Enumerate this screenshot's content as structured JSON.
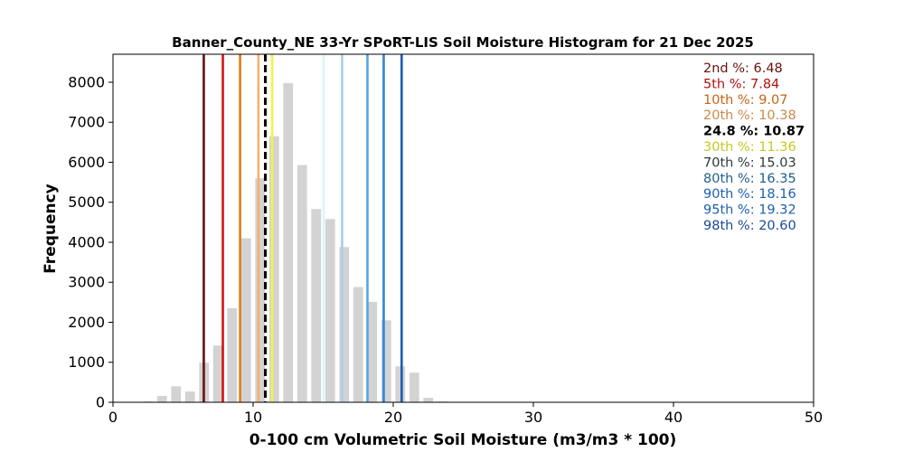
{
  "chart_data": {
    "type": "bar",
    "title": "Banner_County_NE 33-Yr SPoRT-LIS Soil Moisture Histogram for 21 Dec 2025",
    "xlabel": "0-100 cm Volumetric Soil Moisture (m3/m3 * 100)",
    "ylabel": "Frequency",
    "xlim": [
      0,
      50
    ],
    "ylim": [
      0,
      8700
    ],
    "xticks": [
      "0",
      "10",
      "20",
      "30",
      "40",
      "50"
    ],
    "yticks": [
      "0",
      "1000",
      "2000",
      "3000",
      "4000",
      "5000",
      "6000",
      "7000",
      "8000"
    ],
    "bar_color": "#d3d3d3",
    "bar_width": 0.7,
    "bins": [
      {
        "x": 2.5,
        "value": 20
      },
      {
        "x": 3.5,
        "value": 160
      },
      {
        "x": 4.5,
        "value": 400
      },
      {
        "x": 5.5,
        "value": 270
      },
      {
        "x": 6.5,
        "value": 990
      },
      {
        "x": 7.5,
        "value": 1420
      },
      {
        "x": 8.5,
        "value": 2350
      },
      {
        "x": 9.5,
        "value": 4100
      },
      {
        "x": 10.5,
        "value": 5600
      },
      {
        "x": 11.5,
        "value": 6650
      },
      {
        "x": 12.5,
        "value": 7980
      },
      {
        "x": 13.5,
        "value": 5930
      },
      {
        "x": 14.5,
        "value": 4830
      },
      {
        "x": 15.5,
        "value": 4580
      },
      {
        "x": 16.5,
        "value": 3880
      },
      {
        "x": 17.5,
        "value": 2880
      },
      {
        "x": 18.5,
        "value": 2510
      },
      {
        "x": 19.5,
        "value": 2050
      },
      {
        "x": 20.5,
        "value": 900
      },
      {
        "x": 21.5,
        "value": 740
      },
      {
        "x": 22.5,
        "value": 110
      },
      {
        "x": 23.5,
        "value": 20
      }
    ],
    "percentile_lines": [
      {
        "label": "2nd %: 6.48",
        "value": 6.48,
        "color": "#6b0f0f",
        "dashed": false
      },
      {
        "label": "5th %: 7.84",
        "value": 7.84,
        "color": "#d21414",
        "dashed": false
      },
      {
        "label": "10th %: 9.07",
        "value": 9.07,
        "color": "#e07b1a",
        "dashed": false
      },
      {
        "label": "20th %: 10.38",
        "value": 10.38,
        "color": "#f5b06e",
        "dashed": false
      },
      {
        "label": "24.8 %: 10.87",
        "value": 10.87,
        "color": "#000000",
        "dashed": true
      },
      {
        "label": "30th %: 11.36",
        "value": 11.36,
        "color": "#f2f24e",
        "dashed": false
      },
      {
        "label": "70th %: 15.03",
        "value": 15.03,
        "color": "#d6f7f7",
        "dashed": false
      },
      {
        "label": "80th %: 16.35",
        "value": 16.35,
        "color": "#a6cfee",
        "dashed": false
      },
      {
        "label": "90th %: 18.16",
        "value": 18.16,
        "color": "#5aa3e0",
        "dashed": false
      },
      {
        "label": "95th %: 19.32",
        "value": 19.32,
        "color": "#2f86d9",
        "dashed": false
      },
      {
        "label": "98th %: 20.60",
        "value": 20.6,
        "color": "#1f5bb5",
        "dashed": false
      }
    ],
    "legend_text_colors": [
      "#6b0f0f",
      "#b01010",
      "#c86414",
      "#c88a4a",
      "#000000",
      "#c8c820",
      "#2a3a3a",
      "#1f5f8a",
      "#1f5fb0",
      "#1f5fb0",
      "#1a4a96"
    ],
    "legend_placement": "top-right",
    "grid": false
  }
}
